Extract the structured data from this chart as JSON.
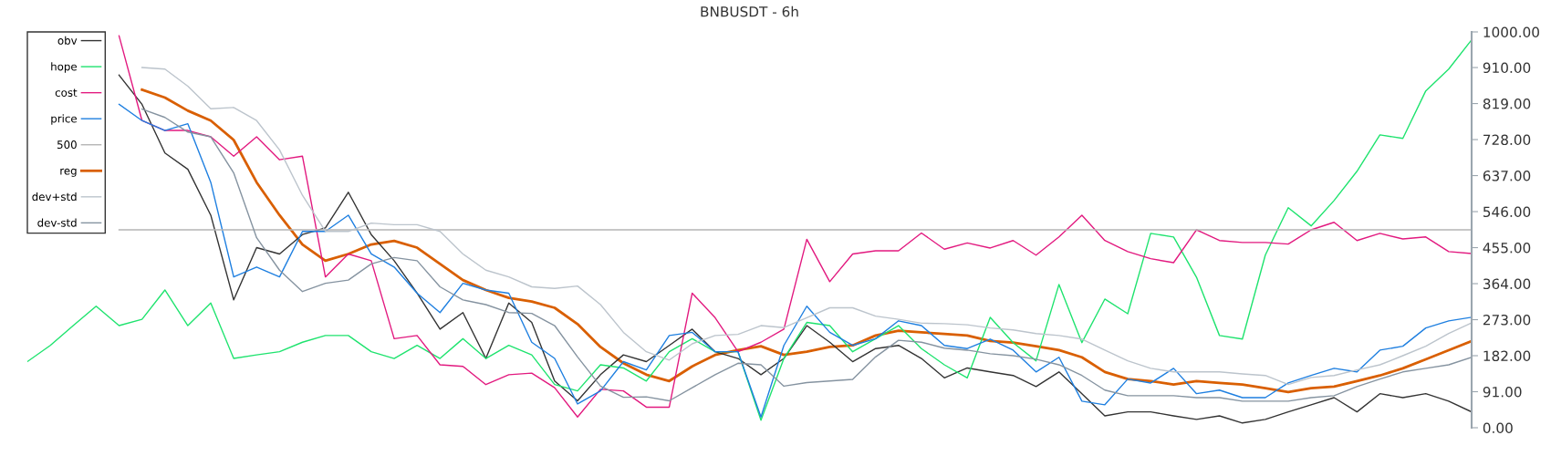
{
  "chart_data": {
    "type": "line",
    "title": "BNBUSDT - 6h",
    "categories": [
      null,
      null,
      null,
      null,
      null,
      null,
      null,
      null,
      null,
      null,
      null,
      null,
      null,
      null,
      null,
      null,
      null,
      null,
      null,
      null,
      null,
      null,
      null,
      null,
      null,
      null,
      null,
      null,
      null,
      null,
      null,
      null,
      null,
      null,
      null,
      null,
      null,
      null,
      null,
      null,
      null,
      null,
      null,
      null,
      null,
      null,
      null,
      null,
      null,
      null,
      null,
      null,
      null,
      null,
      null,
      null,
      null,
      null,
      null,
      null,
      null,
      null,
      null,
      null
    ],
    "series": [
      {
        "name": "obv",
        "color": "#333333",
        "values": [
          null,
          null,
          null,
          null,
          891,
          817,
          694,
          653,
          537,
          323,
          455,
          439,
          488,
          505,
          595,
          488,
          422,
          340,
          249,
          291,
          175,
          315,
          266,
          118,
          68,
          134,
          184,
          167,
          208,
          249,
          192,
          175,
          134,
          175,
          258,
          216,
          167,
          200,
          208,
          175,
          126,
          151,
          141,
          132,
          104,
          141,
          86,
          30,
          40,
          40,
          30,
          21,
          30,
          12,
          21,
          40,
          58,
          76,
          40,
          86,
          76,
          86,
          67,
          40
        ]
      },
      {
        "name": "hope",
        "color": "#1ee36e",
        "values": [
          167,
          208,
          258,
          307,
          258,
          274,
          348,
          258,
          315,
          175,
          184,
          192,
          216,
          233,
          233,
          192,
          175,
          208,
          175,
          225,
          175,
          208,
          184,
          109,
          93,
          159,
          151,
          118,
          192,
          225,
          192,
          192,
          19,
          175,
          266,
          258,
          192,
          225,
          258,
          200,
          159,
          126,
          279,
          215,
          169,
          362,
          215,
          325,
          288,
          491,
          482,
          380,
          233,
          224,
          436,
          556,
          510,
          574,
          648,
          740,
          731,
          851,
          906,
          980
        ]
      },
      {
        "name": "cost",
        "color": "#e2197f",
        "values": [
          null,
          null,
          null,
          null,
          990,
          776,
          751,
          751,
          735,
          686,
          735,
          677,
          686,
          381,
          439,
          422,
          225,
          233,
          159,
          155,
          109,
          134,
          138,
          101,
          27,
          97,
          93,
          52,
          52,
          340,
          278,
          192,
          216,
          249,
          476,
          369,
          439,
          447,
          447,
          492,
          451,
          467,
          454,
          473,
          436,
          482,
          537,
          473,
          445,
          427,
          417,
          500,
          473,
          468,
          468,
          464,
          500,
          519,
          473,
          491,
          477,
          482,
          445,
          440
        ]
      },
      {
        "name": "price",
        "color": "#1e7fe0",
        "values": [
          null,
          null,
          null,
          null,
          817,
          776,
          751,
          768,
          620,
          381,
          406,
          381,
          496,
          496,
          537,
          439,
          406,
          340,
          291,
          365,
          348,
          340,
          216,
          175,
          60,
          93,
          167,
          146,
          233,
          241,
          192,
          192,
          27,
          208,
          307,
          241,
          208,
          225,
          270,
          258,
          208,
          200,
          224,
          196,
          141,
          178,
          67,
          58,
          123,
          113,
          150,
          86,
          95,
          76,
          76,
          113,
          132,
          150,
          141,
          196,
          206,
          252,
          270,
          279
        ]
      },
      {
        "name": "500",
        "color": "#b4b4b4",
        "values": [
          null,
          null,
          null,
          null,
          500,
          500,
          500,
          500,
          500,
          500,
          500,
          500,
          500,
          500,
          500,
          500,
          500,
          500,
          500,
          500,
          500,
          500,
          500,
          500,
          500,
          500,
          500,
          500,
          500,
          500,
          500,
          500,
          500,
          500,
          500,
          500,
          500,
          500,
          500,
          500,
          500,
          500,
          500,
          500,
          500,
          500,
          500,
          500,
          500,
          500,
          500,
          500,
          500,
          500,
          500,
          500,
          500,
          500,
          500,
          500,
          500,
          500,
          500,
          500
        ]
      },
      {
        "name": "reg",
        "color": "#d95f02",
        "values": [
          null,
          null,
          null,
          null,
          null,
          854,
          834,
          801,
          776,
          727,
          620,
          537,
          463,
          422,
          439,
          463,
          472,
          455,
          414,
          373,
          348,
          328,
          319,
          303,
          262,
          204,
          163,
          134,
          118,
          155,
          184,
          196,
          206,
          184,
          192,
          204,
          208,
          233,
          245,
          241,
          237,
          233,
          219,
          215,
          206,
          196,
          178,
          141,
          123,
          118,
          109,
          118,
          113,
          109,
          100,
          90,
          100,
          104,
          118,
          132,
          150,
          173,
          196,
          219
        ]
      },
      {
        "name": "dev+std",
        "color": "#bcc4cc",
        "values": [
          null,
          null,
          null,
          null,
          null,
          910,
          906,
          863,
          806,
          809,
          776,
          702,
          587,
          496,
          496,
          517,
          513,
          513,
          496,
          439,
          398,
          381,
          356,
          352,
          358,
          311,
          241,
          192,
          171,
          212,
          233,
          236,
          258,
          253,
          278,
          303,
          303,
          282,
          274,
          264,
          263,
          260,
          252,
          247,
          238,
          233,
          224,
          196,
          169,
          150,
          141,
          141,
          141,
          136,
          132,
          109,
          127,
          132,
          146,
          159,
          182,
          206,
          238,
          265
        ]
      },
      {
        "name": "dev-std",
        "color": "#8593a0",
        "values": [
          null,
          null,
          null,
          null,
          null,
          805,
          784,
          747,
          735,
          644,
          480,
          398,
          344,
          365,
          373,
          414,
          430,
          422,
          356,
          323,
          311,
          291,
          289,
          258,
          179,
          105,
          77,
          78,
          68,
          101,
          134,
          163,
          159,
          105,
          114,
          118,
          122,
          179,
          221,
          216,
          201,
          196,
          187,
          182,
          173,
          159,
          132,
          95,
          81,
          81,
          81,
          76,
          76,
          67,
          67,
          67,
          76,
          81,
          104,
          123,
          141,
          150,
          159,
          178
        ]
      }
    ],
    "ylim": [
      0,
      1000
    ],
    "yticks": [
      {
        "value": 0,
        "label": "0.00"
      },
      {
        "value": 91,
        "label": "91.00"
      },
      {
        "value": 182,
        "label": "182.00"
      },
      {
        "value": 273,
        "label": "273.00"
      },
      {
        "value": 364,
        "label": "364.00"
      },
      {
        "value": 455,
        "label": "455.00"
      },
      {
        "value": 546,
        "label": "546.00"
      },
      {
        "value": 637,
        "label": "637.00"
      },
      {
        "value": 728,
        "label": "728.00"
      },
      {
        "value": 819,
        "label": "819.00"
      },
      {
        "value": 910,
        "label": "910.00"
      },
      {
        "value": 1000,
        "label": "1000.00"
      }
    ],
    "tick_labels": "y",
    "legend": "top left",
    "grid": false
  }
}
